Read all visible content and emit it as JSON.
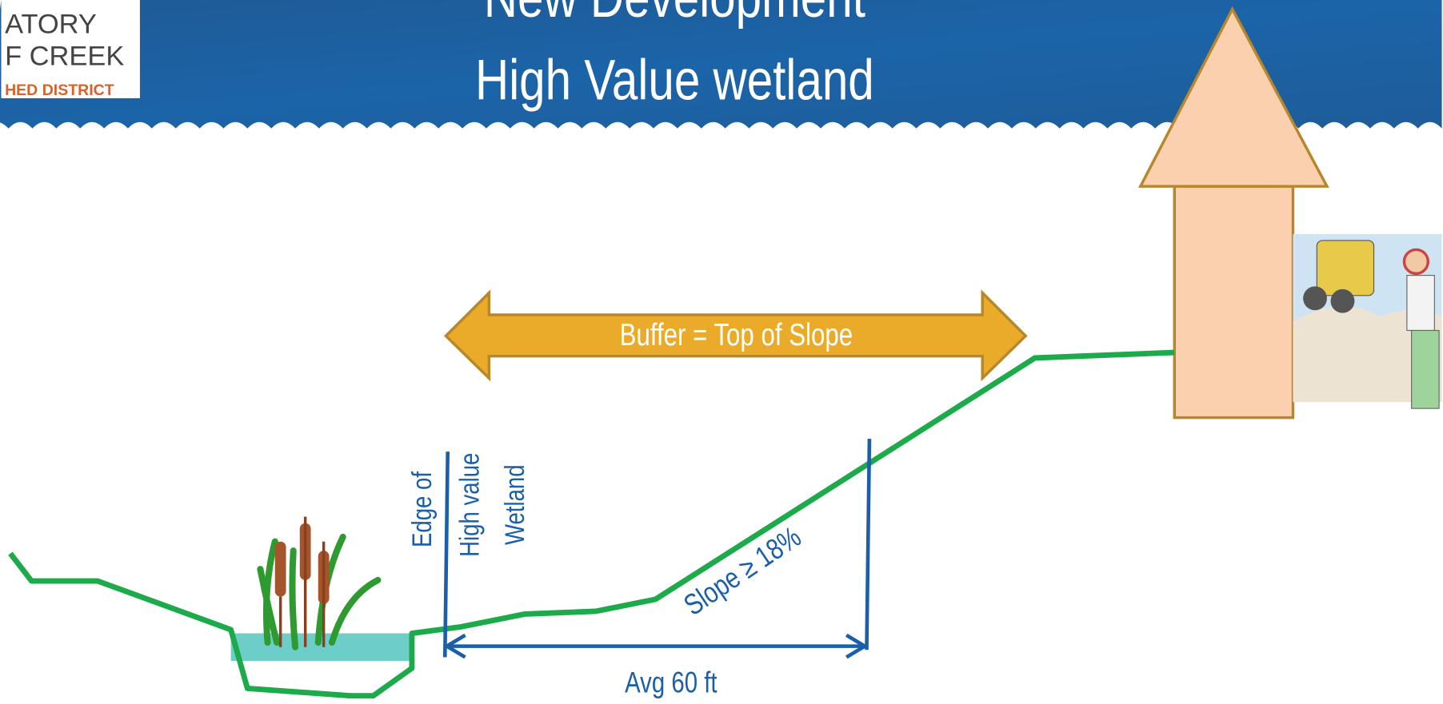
{
  "header": {
    "logo_lines": [
      "ATORY",
      "F CREEK",
      "HED DISTRICT"
    ],
    "title_lines": [
      "New Development",
      "High Value wetland"
    ]
  },
  "labels": {
    "buffer": "Buffer = Top of Slope",
    "edge": [
      "Edge of",
      "High value",
      "Wetland"
    ],
    "slope": "Slope ≥ 18%",
    "distance": "Avg 60 ft"
  }
}
